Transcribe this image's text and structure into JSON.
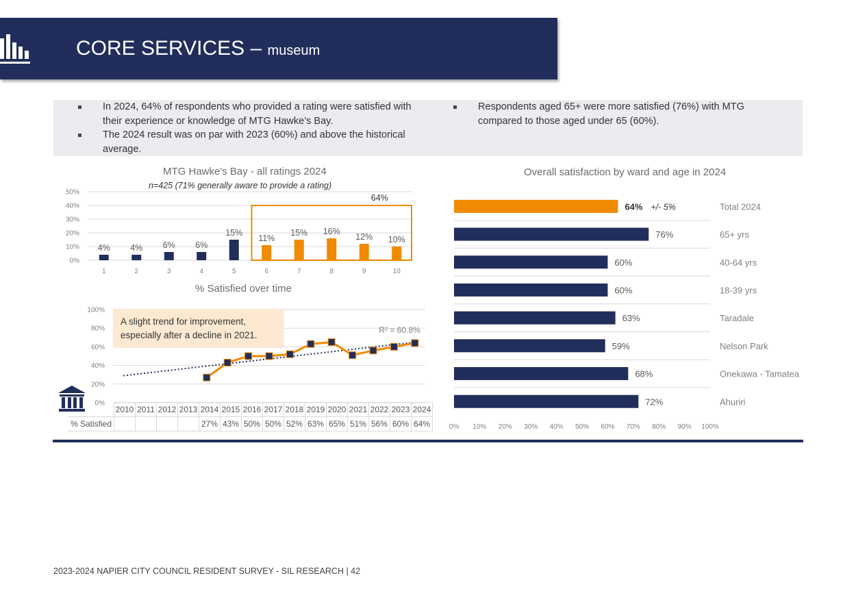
{
  "header": {
    "title": "CORE SERVICES –",
    "subtitle": "museum",
    "icon": "bar-chart-icon"
  },
  "bullets": {
    "left": [
      "In 2024, 64% of respondents who provided a rating were satisfied with their experience or knowledge of MTG Hawke’s Bay.",
      "The 2024 result was on par with 2023 (60%) and above the historical average."
    ],
    "right": [
      "Respondents aged 65+ were more satisfied (76%) with MTG compared to those aged under 65 (60%)."
    ]
  },
  "chart_data": [
    {
      "type": "bar",
      "title": "MTG Hawke's Bay - all ratings 2024",
      "subtitle": "n=425 (71% generally aware to provide a rating)",
      "categories": [
        "1",
        "2",
        "3",
        "4",
        "5",
        "6",
        "7",
        "8",
        "9",
        "10"
      ],
      "values": [
        4,
        4,
        6,
        6,
        15,
        11,
        15,
        16,
        12,
        10
      ],
      "value_labels": [
        "4%",
        "4%",
        "6%",
        "6%",
        "15%",
        "11%",
        "15%",
        "16%",
        "12%",
        "10%"
      ],
      "highlight_from_index": 5,
      "highlight_label": "64%",
      "ylim": [
        0,
        50
      ],
      "yticks": [
        "0%",
        "10%",
        "20%",
        "30%",
        "40%",
        "50%"
      ],
      "grid": true,
      "colors": {
        "base": "#212e5c",
        "highlight": "#f08a00"
      }
    },
    {
      "type": "line",
      "title": "% Satisfied over time",
      "x": [
        "2010",
        "2011",
        "2012",
        "2013",
        "2014",
        "2015",
        "2016",
        "2017",
        "2018",
        "2019",
        "2020",
        "2021",
        "2022",
        "2023",
        "2024"
      ],
      "series": [
        {
          "name": "% Satisfied",
          "values": [
            null,
            null,
            null,
            null,
            27,
            43,
            50,
            50,
            52,
            63,
            65,
            51,
            56,
            60,
            64
          ],
          "labels": [
            "",
            "",
            "",
            "",
            "27%",
            "43%",
            "50%",
            "50%",
            "52%",
            "63%",
            "65%",
            "51%",
            "56%",
            "60%",
            "64%"
          ]
        }
      ],
      "trendline": {
        "label": "R² = 60.8%",
        "start": 29,
        "end": 65
      },
      "annotation": "A slight trend for improvement, especially after a decline in 2021.",
      "ylim": [
        0,
        100
      ],
      "yticks": [
        "0%",
        "20%",
        "40%",
        "60%",
        "80%",
        "100%"
      ],
      "grid": true,
      "colors": {
        "line": "#f08a00",
        "marker": "#212e5c",
        "trend": "#212e5c"
      }
    },
    {
      "type": "bar",
      "orientation": "horizontal",
      "title": "Overall satisfaction by ward and age in 2024",
      "categories": [
        "Total 2024",
        "65+ yrs",
        "40-64 yrs",
        "18-39 yrs",
        "Taradale",
        "Nelson Park",
        "Onekawa - Tamatea",
        "Ahuriri"
      ],
      "values": [
        64,
        76,
        60,
        60,
        63,
        59,
        68,
        72
      ],
      "value_labels": [
        "64%",
        "76%",
        "60%",
        "60%",
        "63%",
        "59%",
        "68%",
        "72%"
      ],
      "margin_note": "+/- 5%",
      "xlim": [
        0,
        100
      ],
      "xticks": [
        "0%",
        "10%",
        "20%",
        "30%",
        "40%",
        "50%",
        "60%",
        "70%",
        "80%",
        "90%",
        "100%"
      ],
      "colors": {
        "total": "#f08a00",
        "base": "#212e5c"
      }
    }
  ],
  "footer": "2023-2024 NAPIER CITY COUNCIL RESIDENT SURVEY - SIL RESEARCH | 42"
}
